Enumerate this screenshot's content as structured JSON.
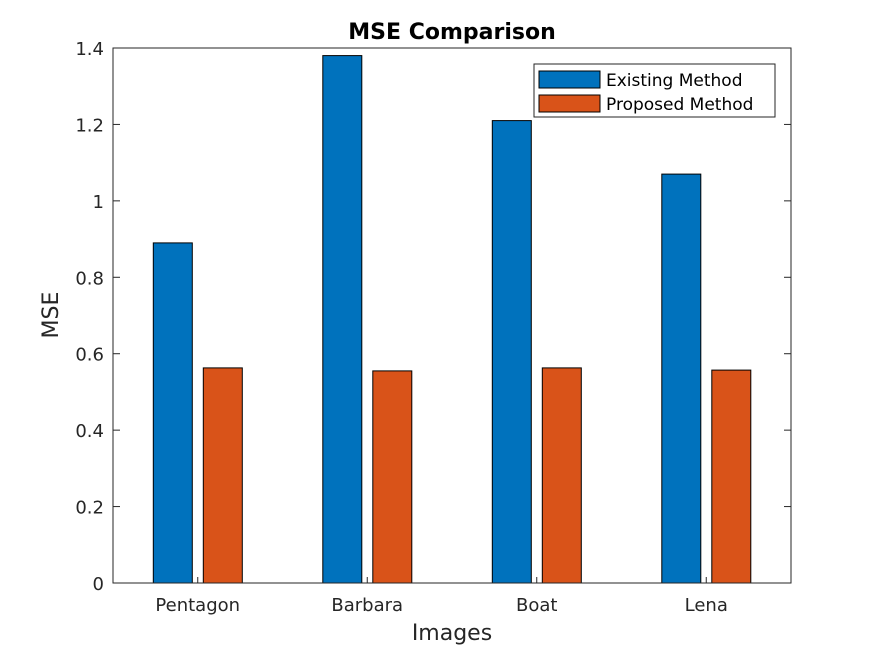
{
  "chart_data": {
    "type": "bar",
    "title": "MSE Comparison",
    "xlabel": "Images",
    "ylabel": "MSE",
    "categories": [
      "Pentagon",
      "Barbara",
      "Boat",
      "Lena"
    ],
    "series": [
      {
        "name": "Existing Method",
        "color": "#0072BD",
        "values": [
          0.89,
          1.38,
          1.21,
          1.07
        ]
      },
      {
        "name": "Proposed Method",
        "color": "#D95319",
        "values": [
          0.563,
          0.555,
          0.563,
          0.557
        ]
      }
    ],
    "ylim": [
      0,
      1.4
    ],
    "yticks": [
      "0",
      "0.2",
      "0.4",
      "0.6",
      "0.8",
      "1",
      "1.2",
      "1.4"
    ],
    "grid": false,
    "legend_position": "top-right"
  }
}
